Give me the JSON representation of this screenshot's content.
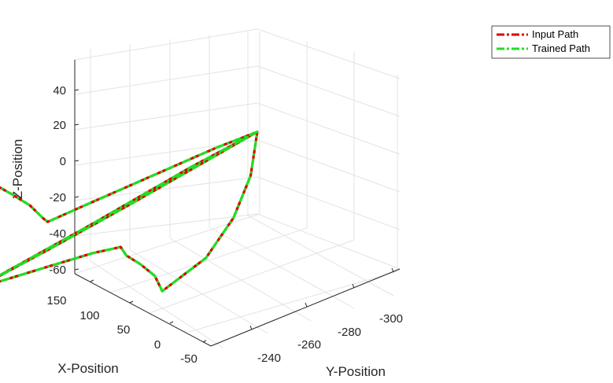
{
  "chart_data": {
    "type": "line",
    "projection": "3d",
    "title": "",
    "xlabel": "X-Position",
    "ylabel": "Y-Position",
    "zlabel": "Z-Position",
    "x_ticks": [
      "-50",
      "0",
      "50",
      "100",
      "150"
    ],
    "y_ticks": [
      "-240",
      "-260",
      "-280",
      "-300"
    ],
    "z_ticks": [
      "-60",
      "-40",
      "-20",
      "0",
      "20",
      "40"
    ],
    "grid": true,
    "legend_position": "top-right",
    "series": [
      {
        "name": "Input Path",
        "color": "#dd0000",
        "line_style": "dash-dot",
        "points": [
          {
            "x": 130,
            "y": -245,
            "z": 44
          },
          {
            "x": 124,
            "y": -246,
            "z": 39
          },
          {
            "x": 118,
            "y": -247,
            "z": 34
          },
          {
            "x": 110,
            "y": -249,
            "z": 27
          },
          {
            "x": 100,
            "y": -252,
            "z": 17
          },
          {
            "x": 92,
            "y": -254,
            "z": 7
          },
          {
            "x": 90,
            "y": -255,
            "z": 4
          },
          {
            "x": 72,
            "y": -263,
            "z": 5
          },
          {
            "x": 50,
            "y": -272,
            "z": 6
          },
          {
            "x": 30,
            "y": -281,
            "z": 7
          },
          {
            "x": 15,
            "y": -290,
            "z": 8
          },
          {
            "x": 0,
            "y": -300,
            "z": 8
          },
          {
            "x": -2,
            "y": -297,
            "z": -15
          },
          {
            "x": -5,
            "y": -290,
            "z": -35
          },
          {
            "x": -12,
            "y": -278,
            "z": -52
          },
          {
            "x": -20,
            "y": -260,
            "z": -62
          },
          {
            "x": -18,
            "y": -258,
            "z": -52
          },
          {
            "x": -8,
            "y": -256,
            "z": -42
          },
          {
            "x": 4,
            "y": -255,
            "z": -34
          },
          {
            "x": 10,
            "y": -255,
            "z": -28
          },
          {
            "x": 28,
            "y": -251,
            "z": -25
          },
          {
            "x": 60,
            "y": -244,
            "z": -22
          },
          {
            "x": 95,
            "y": -238,
            "z": -19
          },
          {
            "x": 110,
            "y": -235,
            "z": -18
          },
          {
            "x": 75,
            "y": -251,
            "z": -12
          },
          {
            "x": 40,
            "y": -268,
            "z": -5
          },
          {
            "x": 0,
            "y": -300,
            "z": 8
          },
          {
            "x": 30,
            "y": -286,
            "z": 3
          },
          {
            "x": 70,
            "y": -264,
            "z": -7
          },
          {
            "x": 110,
            "y": -235,
            "z": -18
          },
          {
            "x": 115,
            "y": -238,
            "z": -5
          },
          {
            "x": 120,
            "y": -240,
            "z": 10
          },
          {
            "x": 125,
            "y": -243,
            "z": 28
          },
          {
            "x": 130,
            "y": -245,
            "z": 44
          }
        ]
      },
      {
        "name": "Trained Path",
        "color": "#22dd22",
        "line_style": "dash-dot",
        "points": [
          {
            "x": 130,
            "y": -245,
            "z": 44
          },
          {
            "x": 124,
            "y": -246,
            "z": 39
          },
          {
            "x": 118,
            "y": -247,
            "z": 34
          },
          {
            "x": 110,
            "y": -249,
            "z": 27
          },
          {
            "x": 100,
            "y": -252,
            "z": 17
          },
          {
            "x": 92,
            "y": -254,
            "z": 7
          },
          {
            "x": 90,
            "y": -255,
            "z": 4
          },
          {
            "x": 72,
            "y": -263,
            "z": 5
          },
          {
            "x": 50,
            "y": -272,
            "z": 6
          },
          {
            "x": 30,
            "y": -281,
            "z": 7
          },
          {
            "x": 15,
            "y": -290,
            "z": 8
          },
          {
            "x": 0,
            "y": -300,
            "z": 8
          },
          {
            "x": -2,
            "y": -297,
            "z": -15
          },
          {
            "x": -5,
            "y": -290,
            "z": -35
          },
          {
            "x": -12,
            "y": -278,
            "z": -52
          },
          {
            "x": -20,
            "y": -260,
            "z": -62
          },
          {
            "x": -18,
            "y": -258,
            "z": -52
          },
          {
            "x": -8,
            "y": -256,
            "z": -42
          },
          {
            "x": 4,
            "y": -255,
            "z": -34
          },
          {
            "x": 10,
            "y": -255,
            "z": -28
          },
          {
            "x": 28,
            "y": -251,
            "z": -25
          },
          {
            "x": 60,
            "y": -244,
            "z": -22
          },
          {
            "x": 95,
            "y": -238,
            "z": -19
          },
          {
            "x": 110,
            "y": -235,
            "z": -18
          },
          {
            "x": 75,
            "y": -251,
            "z": -12
          },
          {
            "x": 40,
            "y": -268,
            "z": -5
          },
          {
            "x": 0,
            "y": -300,
            "z": 8
          },
          {
            "x": 30,
            "y": -286,
            "z": 3
          },
          {
            "x": 70,
            "y": -264,
            "z": -7
          },
          {
            "x": 110,
            "y": -235,
            "z": -18
          },
          {
            "x": 115,
            "y": -238,
            "z": -5
          },
          {
            "x": 120,
            "y": -240,
            "z": 10
          },
          {
            "x": 125,
            "y": -243,
            "z": 28
          },
          {
            "x": 130,
            "y": -245,
            "z": 44
          }
        ]
      }
    ]
  }
}
